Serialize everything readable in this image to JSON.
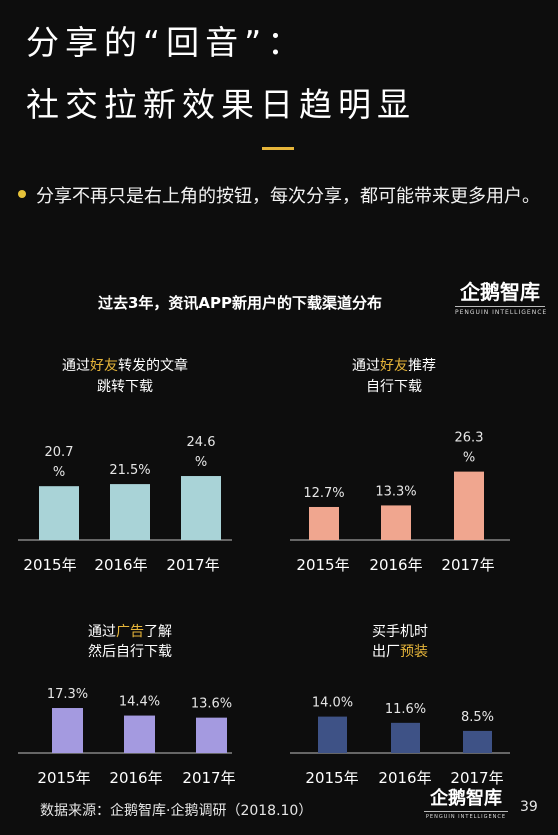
{
  "header": {
    "title_line1": "分享的“回音”：",
    "title_line2": "社交拉新效果日趋明显"
  },
  "bullet": {
    "text": "分享不再只是右上角的按钮，每次分享，都可能带来更多用户。"
  },
  "subtitle": "过去3年，资讯APP新用户的下载渠道分布",
  "logo": {
    "name": "企鹅智库",
    "tagline": "PENGUIN INTELLIGENCE"
  },
  "footer": {
    "source": "数据来源：企鹅智库·企鹅调研（2018.10）",
    "page": "39"
  },
  "colors": {
    "highlight": "#e6b53a",
    "accent": "#e6b53a"
  },
  "chart_data": [
    {
      "type": "bar",
      "title_lines": [
        [
          {
            "t": "通过"
          },
          {
            "t": "好友",
            "hl": true
          },
          {
            "t": "转发的文章"
          }
        ],
        [
          {
            "t": "跳转下载"
          }
        ]
      ],
      "categories": [
        "2015年",
        "2016年",
        "2017年"
      ],
      "values": [
        20.7,
        21.5,
        24.6
      ],
      "value_labels": [
        [
          "20.7",
          "%"
        ],
        [
          "21.5%"
        ],
        [
          "24.6",
          "%"
        ]
      ],
      "color": "#a9d3d7"
    },
    {
      "type": "bar",
      "title_lines": [
        [
          {
            "t": "通过"
          },
          {
            "t": "好友",
            "hl": true
          },
          {
            "t": "推荐"
          }
        ],
        [
          {
            "t": "自行下载"
          }
        ]
      ],
      "categories": [
        "2015年",
        "2016年",
        "2017年"
      ],
      "values": [
        12.7,
        13.3,
        26.3
      ],
      "value_labels": [
        [
          "12.7%"
        ],
        [
          "13.3%"
        ],
        [
          "26.3",
          "%"
        ]
      ],
      "color": "#f0a68f"
    },
    {
      "type": "bar",
      "title_lines": [
        [
          {
            "t": "通过"
          },
          {
            "t": "广告",
            "hl": true
          },
          {
            "t": "了解"
          }
        ],
        [
          {
            "t": "然后自行下载"
          }
        ]
      ],
      "categories": [
        "2015年",
        "2016年",
        "2017年"
      ],
      "values": [
        17.3,
        14.4,
        13.6
      ],
      "value_labels": [
        [
          "17.3%"
        ],
        [
          "14.4%"
        ],
        [
          "13.6%"
        ]
      ],
      "color": "#a49ae0"
    },
    {
      "type": "bar",
      "title_lines": [
        [
          {
            "t": "买手机时"
          }
        ],
        [
          {
            "t": "出厂"
          },
          {
            "t": "预装",
            "hl": true
          }
        ]
      ],
      "categories": [
        "2015年",
        "2016年",
        "2017年"
      ],
      "values": [
        14.0,
        11.6,
        8.5
      ],
      "value_labels": [
        [
          "14.0%"
        ],
        [
          "11.6%"
        ],
        [
          "8.5%"
        ]
      ],
      "color": "#3e5286"
    }
  ]
}
